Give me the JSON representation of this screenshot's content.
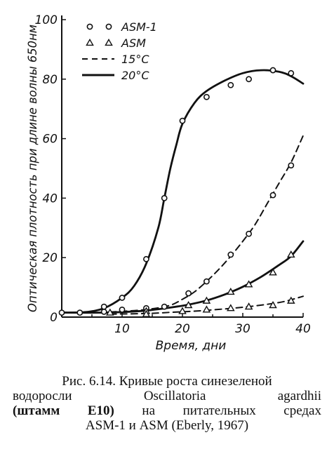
{
  "chart_data": {
    "type": "scatter",
    "xlabel": "Время, дни",
    "ylabel": "Оптическая плотность при длине волны 650нм",
    "xlim": [
      0,
      40
    ],
    "ylim": [
      0,
      100
    ],
    "xticks": [
      "10",
      "20",
      "30",
      "40"
    ],
    "yticks": [
      "0",
      "20",
      "40",
      "60",
      "80",
      "100"
    ],
    "legend": {
      "placement": "top-left",
      "entries": [
        {
          "label": "ASM-1",
          "marker": "circle"
        },
        {
          "label": "ASM",
          "marker": "triangle"
        },
        {
          "label": "15°С",
          "line": "dashed"
        },
        {
          "label": "20°С",
          "line": "solid"
        }
      ]
    },
    "series": [
      {
        "medium": "ASM-1",
        "temperature": "20°С",
        "marker": "circle",
        "points": [
          [
            0,
            1.5
          ],
          [
            3,
            1.5
          ],
          [
            7,
            3.5
          ],
          [
            10,
            6.5
          ],
          [
            14,
            19.5
          ],
          [
            17,
            40
          ],
          [
            20,
            66
          ],
          [
            24,
            74
          ],
          [
            28,
            78
          ],
          [
            31,
            80
          ],
          [
            35,
            83
          ],
          [
            38,
            82
          ]
        ],
        "curve": [
          [
            0,
            1.5
          ],
          [
            4,
            1.7
          ],
          [
            7,
            3
          ],
          [
            10,
            6.5
          ],
          [
            12,
            10.5
          ],
          [
            14,
            18
          ],
          [
            16,
            30
          ],
          [
            17,
            40
          ],
          [
            18,
            50
          ],
          [
            19,
            58
          ],
          [
            20,
            65
          ],
          [
            22,
            72
          ],
          [
            24,
            76
          ],
          [
            27,
            79.5
          ],
          [
            30,
            82
          ],
          [
            33,
            83
          ],
          [
            36,
            82.5
          ],
          [
            38,
            81
          ],
          [
            40,
            78.5
          ]
        ]
      },
      {
        "medium": "ASM-1",
        "temperature": "15°С",
        "marker": "circle",
        "points": [
          [
            7,
            1.8
          ],
          [
            10,
            2.5
          ],
          [
            14,
            3
          ],
          [
            17,
            3.5
          ],
          [
            21,
            8
          ],
          [
            24,
            12
          ],
          [
            28,
            21
          ],
          [
            31,
            28
          ],
          [
            35,
            41
          ],
          [
            38,
            51
          ]
        ],
        "curve": [
          [
            8,
            1.7
          ],
          [
            12,
            2.2
          ],
          [
            15,
            2.8
          ],
          [
            18,
            4
          ],
          [
            20,
            6
          ],
          [
            22,
            8.5
          ],
          [
            24,
            12
          ],
          [
            26,
            16
          ],
          [
            28,
            20.5
          ],
          [
            30,
            25.5
          ],
          [
            32,
            31
          ],
          [
            34,
            38
          ],
          [
            36,
            45
          ],
          [
            38,
            52
          ],
          [
            40,
            61
          ]
        ]
      },
      {
        "medium": "ASM",
        "temperature": "20°С",
        "marker": "triangle",
        "points": [
          [
            8,
            1.5
          ],
          [
            14,
            2
          ],
          [
            21,
            4
          ],
          [
            24,
            5.5
          ],
          [
            28,
            8.5
          ],
          [
            31,
            11
          ],
          [
            35,
            15
          ],
          [
            38,
            21
          ]
        ],
        "curve": [
          [
            0,
            1.5
          ],
          [
            6,
            1.5
          ],
          [
            10,
            1.7
          ],
          [
            14,
            2.2
          ],
          [
            18,
            3.2
          ],
          [
            21,
            4.2
          ],
          [
            24,
            5.6
          ],
          [
            27,
            7.6
          ],
          [
            30,
            10.2
          ],
          [
            33,
            13.5
          ],
          [
            36,
            17.5
          ],
          [
            38,
            20.5
          ],
          [
            40,
            25.5
          ]
        ]
      },
      {
        "medium": "ASM",
        "temperature": "15°С",
        "marker": "triangle",
        "points": [
          [
            14,
            1
          ],
          [
            20,
            2
          ],
          [
            24,
            2.5
          ],
          [
            28,
            3
          ],
          [
            31,
            3.5
          ],
          [
            35,
            4
          ],
          [
            38,
            5.5
          ]
        ],
        "curve": [
          [
            8,
            1
          ],
          [
            14,
            1.2
          ],
          [
            18,
            1.6
          ],
          [
            22,
            2
          ],
          [
            26,
            2.6
          ],
          [
            30,
            3.3
          ],
          [
            34,
            4.3
          ],
          [
            37,
            5.3
          ],
          [
            40,
            7
          ]
        ]
      }
    ]
  },
  "caption": {
    "line1": "Рис. 6.14. Кривые роста синезеленой",
    "line2": "водоросли Oscillatoria agardhii",
    "line3_bold": "(штамм Е10)",
    "line3_rest": " на питательных средах",
    "line4": "ASM-1 и ASM (Eberly, 1967)"
  }
}
